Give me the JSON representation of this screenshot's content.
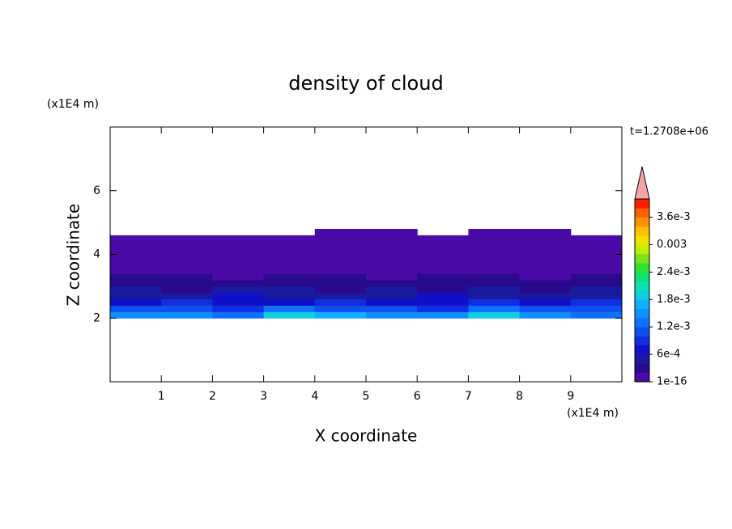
{
  "chart_data": {
    "type": "contour",
    "title": "density of cloud",
    "xlabel": "X coordinate",
    "ylabel": "Z coordinate",
    "x_unit": "(x1E4 m)",
    "y_unit": "(x1E4 m)",
    "time_label": "t=1.2708e+06",
    "xlim": [
      0,
      10
    ],
    "ylim": [
      0,
      8
    ],
    "xticks": [
      1,
      2,
      3,
      4,
      5,
      6,
      7,
      8,
      9
    ],
    "yticks": [
      2,
      4,
      6
    ],
    "x": [
      0.5,
      1.5,
      2.5,
      3.5,
      4.5,
      5.5,
      6.5,
      7.5,
      8.5,
      9.5
    ],
    "z": [
      2.1,
      2.3,
      2.5,
      2.7,
      2.9,
      3.1,
      3.3,
      3.5,
      3.7,
      3.9,
      4.1,
      4.3,
      4.5,
      4.7
    ],
    "values": [
      [
        0.0015,
        0.0016,
        0.0014,
        0.002,
        0.0017,
        0.0015,
        0.0016,
        0.0019,
        0.0015,
        0.0014
      ],
      [
        0.0011,
        0.0012,
        0.001,
        0.0013,
        0.0011,
        0.0012,
        0.001,
        0.0013,
        0.0011,
        0.0012
      ],
      [
        0.0008,
        0.0009,
        0.0007,
        0.0008,
        0.0009,
        0.0007,
        0.0008,
        0.0009,
        0.0008,
        0.0009
      ],
      [
        0.0006,
        0.0005,
        0.0007,
        0.0006,
        0.0005,
        0.0006,
        0.0007,
        0.0005,
        0.0006,
        0.0005
      ],
      [
        0.0005,
        0.0004,
        0.0005,
        0.0006,
        0.0004,
        0.0005,
        0.0004,
        0.0005,
        0.0004,
        0.0005
      ],
      [
        0.0004,
        0.0003,
        0.0004,
        0.0004,
        0.0003,
        0.0004,
        0.0003,
        0.0004,
        0.0003,
        0.0004
      ],
      [
        0.0003,
        0.0003,
        0.0002,
        0.0003,
        0.0003,
        0.0002,
        0.0003,
        0.0003,
        0.0002,
        0.0003
      ],
      [
        0.0002,
        0.0001,
        0.0002,
        0.0002,
        0.0001,
        0.0002,
        0.0002,
        0.0001,
        0.0002,
        0.0002
      ],
      [
        0.0001,
        0.0001,
        0.0001,
        0.0001,
        0.0001,
        0.0001,
        0.0001,
        0.0001,
        0.0001,
        0.0001
      ],
      [
        0.0001,
        0.0001,
        0.0001,
        0.0001,
        0.0001,
        0.0001,
        0.0001,
        0.0001,
        0.0001,
        0.0001
      ],
      [
        0.0001,
        0.0001,
        0.0001,
        0.0001,
        0.0001,
        0.0001,
        0.0001,
        0.0001,
        0.0001,
        0.0001
      ],
      [
        0.0001,
        0.0001,
        0.0001,
        0.0001,
        0.0001,
        0.0001,
        0.0001,
        0.0001,
        0.0001,
        0.0001
      ],
      [
        0.0001,
        0.0001,
        0.0001,
        0.0001,
        0.0001,
        0.0001,
        0.0001,
        0.0001,
        0.0001,
        0.0001
      ],
      [
        null,
        null,
        null,
        null,
        0.0001,
        0.0001,
        null,
        0.0001,
        0.0001,
        null
      ]
    ],
    "clim": [
      1e-16,
      0.004
    ],
    "colors": [
      "#4b0aa8",
      "#2a0a8c",
      "#1a1aa0",
      "#1010c8",
      "#1030e0",
      "#1050f0",
      "#1070ff",
      "#1090ff",
      "#10b0ff",
      "#10d0e0",
      "#10e0b0",
      "#10e070",
      "#30e030",
      "#80e020",
      "#c0f000",
      "#f0e000",
      "#ffc000",
      "#ff9000",
      "#ff6000",
      "#ff2000"
    ],
    "extend_color": "#f4a6a6",
    "colorbar_ticks": [
      1e-16,
      {
        "value": 0.0006,
        "label": "6e-4"
      },
      {
        "value": 0.0012,
        "label": "1.2e-3"
      },
      {
        "value": 0.0018,
        "label": "1.8e-3"
      },
      {
        "value": 0.0024,
        "label": "2.4e-3"
      },
      0.003,
      {
        "value": 0.0036,
        "label": "3.6e-3"
      }
    ]
  }
}
